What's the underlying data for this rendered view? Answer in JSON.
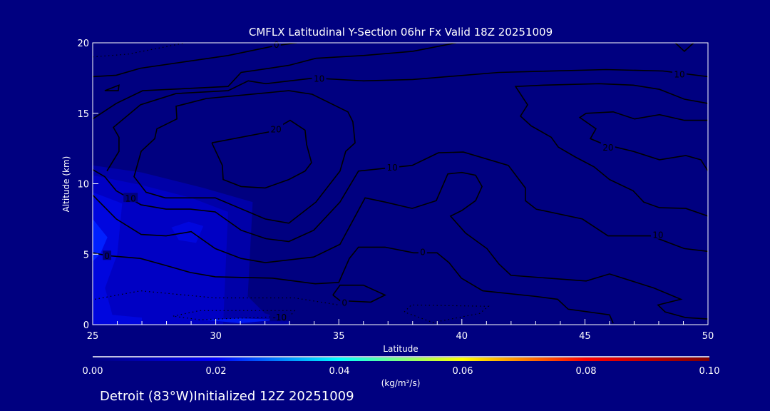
{
  "chart_data": {
    "type": "contour",
    "title": "CMFLX Latitudinal Y-Section 06hr  Fx Valid 18Z 20251009",
    "xlabel": "Latitude",
    "ylabel": "Altitude (km)",
    "xlim": [
      25,
      50
    ],
    "ylim": [
      0,
      20
    ],
    "xticks": [
      25,
      30,
      35,
      40,
      45,
      50
    ],
    "xtick_labels": [
      "25",
      "30",
      "35",
      "40",
      "45",
      "50"
    ],
    "xminor_step": 1,
    "yticks": [
      0,
      5,
      10,
      15,
      20
    ],
    "ytick_labels": [
      "0",
      "5",
      "10",
      "15",
      "20"
    ],
    "background_color": "#000080",
    "shading": [
      {
        "value": 0.006,
        "color": "#0000a8",
        "points": [
          [
            25,
            11.3
          ],
          [
            27,
            10.8
          ],
          [
            29.5,
            9.7
          ],
          [
            31.5,
            8.7
          ],
          [
            31.3,
            2
          ],
          [
            32,
            0.8
          ],
          [
            33,
            0.3
          ],
          [
            33,
            0
          ],
          [
            25,
            0
          ]
        ]
      },
      {
        "value": 0.01,
        "color": "#0000c4",
        "points": [
          [
            25,
            10.6
          ],
          [
            27,
            9.9
          ],
          [
            29,
            9.0
          ],
          [
            30.5,
            8.0
          ],
          [
            30.3,
            0
          ],
          [
            25,
            0
          ]
        ]
      },
      {
        "value": 0.014,
        "color": "#0006de",
        "points": [
          [
            25,
            9.4
          ],
          [
            26.2,
            8.6
          ],
          [
            26.0,
            5.0
          ],
          [
            25.5,
            2.6
          ],
          [
            25.8,
            0.7
          ],
          [
            27,
            0.5
          ],
          [
            27,
            0
          ],
          [
            25,
            0
          ]
        ]
      },
      {
        "value": 0.014,
        "color": "#0006de",
        "points": [
          [
            28.2,
            6.9
          ],
          [
            28.9,
            7.3
          ],
          [
            29.5,
            7.0
          ],
          [
            29.2,
            5.8
          ],
          [
            28.5,
            6.0
          ]
        ]
      },
      {
        "value": 0.018,
        "color": "#0020ff",
        "points": [
          [
            25,
            7.5
          ],
          [
            25.6,
            6.2
          ],
          [
            25.3,
            5.0
          ],
          [
            25,
            4.5
          ]
        ]
      },
      {
        "value": 0.016,
        "color": "#0018f0",
        "points": [
          [
            29.5,
            0.35
          ],
          [
            31,
            0.45
          ],
          [
            32.5,
            0.35
          ],
          [
            31,
            0.1
          ]
        ]
      }
    ],
    "contours": [
      {
        "level": 0,
        "style": "solid",
        "points": [
          [
            25,
            17.6
          ],
          [
            25.96,
            17.7
          ],
          [
            26.94,
            18.2
          ],
          [
            30.5,
            19.1
          ],
          [
            32.45,
            19.8
          ],
          [
            33.3,
            20
          ]
        ]
      },
      {
        "level": 5,
        "style": "solid",
        "points": [
          [
            25,
            14.6
          ],
          [
            25.96,
            15.7
          ],
          [
            27.03,
            16.6
          ],
          [
            30.5,
            16.9
          ],
          [
            31.03,
            17.9
          ],
          [
            32.97,
            18.4
          ],
          [
            34.07,
            18.9
          ],
          [
            36.0,
            19.1
          ],
          [
            38.0,
            19.4
          ],
          [
            39.77,
            20
          ]
        ]
      },
      {
        "level": 10,
        "style": "solid",
        "points": [
          [
            25.58,
            10.9
          ],
          [
            26.07,
            12.3
          ],
          [
            26.07,
            13.3
          ],
          [
            25.84,
            14.0
          ],
          [
            26.94,
            15.6
          ],
          [
            28.39,
            16.4
          ],
          [
            30.5,
            16.6
          ],
          [
            31.32,
            17.3
          ],
          [
            32.04,
            17.1
          ],
          [
            33.98,
            17.5
          ],
          [
            36.0,
            17.3
          ],
          [
            38.0,
            17.4
          ],
          [
            41.5,
            17.9
          ],
          [
            45.86,
            18.1
          ],
          [
            48.17,
            18.0
          ],
          [
            50,
            17.6
          ]
        ]
      },
      {
        "level": 5,
        "style": "solid",
        "points": [
          [
            25.49,
            16.6
          ],
          [
            26.07,
            17.0
          ],
          [
            26.04,
            16.6
          ],
          [
            25.49,
            16.6
          ]
        ]
      },
      {
        "level": 15,
        "style": "solid",
        "points": [
          [
            29.63,
            16.05
          ],
          [
            28.39,
            15.5
          ],
          [
            28.42,
            14.6
          ],
          [
            27.61,
            13.9
          ],
          [
            27.52,
            13.2
          ],
          [
            26.97,
            12.3
          ],
          [
            26.68,
            10.5
          ],
          [
            27.17,
            9.4
          ],
          [
            27.95,
            9.0
          ],
          [
            29.98,
            9.0
          ],
          [
            32.01,
            7.5
          ],
          [
            32.97,
            7.2
          ],
          [
            34.07,
            8.7
          ],
          [
            35.05,
            10.9
          ],
          [
            35.28,
            12.3
          ],
          [
            35.66,
            12.9
          ],
          [
            35.57,
            14.4
          ],
          [
            35.37,
            15.1
          ],
          [
            33.92,
            16.35
          ],
          [
            32.97,
            16.6
          ],
          [
            29.63,
            16.05
          ]
        ]
      },
      {
        "level": 20,
        "style": "solid",
        "points": [
          [
            29.84,
            12.9
          ],
          [
            32.24,
            13.7
          ],
          [
            33.02,
            14.5
          ],
          [
            33.63,
            13.8
          ],
          [
            33.69,
            12.8
          ],
          [
            33.89,
            11.5
          ],
          [
            33.63,
            10.9
          ],
          [
            32.97,
            10.3
          ],
          [
            32.01,
            9.7
          ],
          [
            31.03,
            9.8
          ],
          [
            30.3,
            10.3
          ],
          [
            30.27,
            11.3
          ],
          [
            29.84,
            12.9
          ]
        ]
      },
      {
        "level": 10,
        "style": "solid",
        "points": [
          [
            25,
            11.0
          ],
          [
            25.49,
            10.5
          ],
          [
            25.96,
            9.5
          ],
          [
            26.36,
            9.1
          ],
          [
            26.97,
            8.5
          ],
          [
            27.98,
            8.2
          ],
          [
            28.97,
            8.2
          ],
          [
            29.98,
            8.0
          ],
          [
            31.03,
            6.7
          ],
          [
            32.04,
            6.1
          ],
          [
            32.97,
            5.9
          ],
          [
            33.98,
            6.7
          ],
          [
            35.05,
            8.7
          ],
          [
            35.8,
            10.9
          ],
          [
            36.88,
            11.1
          ],
          [
            37.98,
            11.3
          ],
          [
            39.05,
            12.2
          ],
          [
            40.06,
            12.25
          ],
          [
            41.89,
            11.3
          ],
          [
            42.58,
            9.7
          ],
          [
            42.58,
            8.8
          ],
          [
            43.02,
            8.2
          ],
          [
            44.9,
            7.5
          ],
          [
            45.94,
            6.3
          ],
          [
            47.68,
            6.3
          ],
          [
            49.04,
            5.4
          ],
          [
            50,
            5.2
          ]
        ]
      },
      {
        "level": 5,
        "style": "solid",
        "points": [
          [
            25,
            9.2
          ],
          [
            25.96,
            7.5
          ],
          [
            26.97,
            6.4
          ],
          [
            27.98,
            6.3
          ],
          [
            29.0,
            6.6
          ],
          [
            29.98,
            5.4
          ],
          [
            31.03,
            4.7
          ],
          [
            32.01,
            4.4
          ],
          [
            33.98,
            4.8
          ],
          [
            35.05,
            5.7
          ],
          [
            36.07,
            9.0
          ],
          [
            36.88,
            8.7
          ],
          [
            37.98,
            8.25
          ],
          [
            38.96,
            8.8
          ],
          [
            39.43,
            10.7
          ],
          [
            40.0,
            10.8
          ],
          [
            40.56,
            10.6
          ],
          [
            40.82,
            9.8
          ],
          [
            40.56,
            8.8
          ],
          [
            40.0,
            8.1
          ],
          [
            39.54,
            7.7
          ],
          [
            40.15,
            6.5
          ],
          [
            41.02,
            5.4
          ],
          [
            41.51,
            4.3
          ],
          [
            42.0,
            3.5
          ],
          [
            45.05,
            3.1
          ],
          [
            46.0,
            3.6
          ],
          [
            47.8,
            2.6
          ],
          [
            48.9,
            1.8
          ],
          [
            47.97,
            1.4
          ],
          [
            48.26,
            0.9
          ],
          [
            49.1,
            0.5
          ],
          [
            50,
            0.4
          ]
        ]
      },
      {
        "level": 0,
        "style": "solid",
        "points": [
          [
            25,
            5.1
          ],
          [
            25.58,
            4.9
          ],
          [
            26.94,
            4.7
          ],
          [
            27.98,
            4.2
          ],
          [
            28.97,
            3.7
          ],
          [
            29.98,
            3.4
          ],
          [
            32.3,
            3.3
          ],
          [
            34.04,
            2.9
          ],
          [
            35.0,
            3.0
          ],
          [
            35.43,
            4.7
          ],
          [
            35.8,
            5.5
          ],
          [
            36.88,
            5.5
          ],
          [
            38.04,
            5.1
          ],
          [
            38.99,
            5.1
          ],
          [
            39.48,
            4.4
          ],
          [
            39.98,
            3.3
          ],
          [
            40.85,
            2.4
          ],
          [
            43.02,
            2.0
          ],
          [
            43.89,
            1.8
          ],
          [
            44.32,
            1.1
          ],
          [
            46.0,
            0.7
          ],
          [
            46.15,
            0.1
          ]
        ]
      },
      {
        "level": 0,
        "style": "solid",
        "points": [
          [
            34.76,
            2.1
          ],
          [
            35.05,
            2.8
          ],
          [
            36.0,
            2.8
          ],
          [
            36.88,
            2.1
          ],
          [
            36.3,
            1.6
          ],
          [
            35.05,
            1.7
          ],
          [
            34.76,
            2.1
          ]
        ]
      },
      {
        "level": 0,
        "style": "solid",
        "points": [
          [
            48.67,
            20
          ],
          [
            49.04,
            19.4
          ],
          [
            49.42,
            20
          ]
        ]
      },
      {
        "level": 10,
        "style": "solid",
        "points": [
          [
            50,
            15.7
          ],
          [
            49.04,
            16.0
          ],
          [
            48.03,
            16.7
          ],
          [
            46.96,
            17.0
          ],
          [
            45.57,
            17.1
          ],
          [
            43.34,
            17.0
          ],
          [
            42.18,
            16.9
          ],
          [
            42.67,
            15.6
          ],
          [
            42.38,
            14.8
          ],
          [
            42.82,
            14.1
          ],
          [
            43.63,
            13.3
          ],
          [
            43.92,
            12.6
          ],
          [
            44.61,
            11.9
          ],
          [
            45.37,
            11.2
          ],
          [
            46.0,
            10.3
          ],
          [
            46.96,
            9.5
          ],
          [
            47.39,
            8.7
          ],
          [
            48.03,
            8.3
          ],
          [
            49.1,
            8.25
          ],
          [
            50,
            7.7
          ]
        ]
      },
      {
        "level": 20,
        "style": "solid",
        "points": [
          [
            50,
            14.5
          ],
          [
            49.04,
            14.5
          ],
          [
            48.03,
            14.9
          ],
          [
            47.02,
            14.6
          ],
          [
            46.15,
            15.1
          ],
          [
            45.05,
            15.0
          ],
          [
            44.79,
            14.7
          ],
          [
            45.45,
            13.9
          ],
          [
            45.22,
            13.2
          ],
          [
            45.77,
            12.8
          ],
          [
            46.96,
            12.3
          ],
          [
            48.03,
            11.7
          ],
          [
            49.1,
            12.0
          ],
          [
            49.71,
            11.7
          ],
          [
            50,
            10.9
          ]
        ]
      },
      {
        "level": -5,
        "style": "dotted",
        "points": [
          [
            25,
            19.0
          ],
          [
            26.45,
            19.2
          ],
          [
            28.77,
            20
          ]
        ]
      },
      {
        "level": -5,
        "style": "dotted",
        "points": [
          [
            25.09,
            1.8
          ],
          [
            26.94,
            2.4
          ],
          [
            29.98,
            1.9
          ],
          [
            33.2,
            1.9
          ],
          [
            35.34,
            1.3
          ]
        ]
      },
      {
        "level": -10,
        "style": "dotted",
        "points": [
          [
            28.27,
            0.6
          ],
          [
            29.34,
            1.0
          ],
          [
            33.2,
            1.0
          ],
          [
            33.02,
            0.6
          ],
          [
            29.34,
            0.35
          ],
          [
            28.27,
            0.6
          ]
        ]
      },
      {
        "level": -5,
        "style": "dotted",
        "points": [
          [
            37.66,
            0.9
          ],
          [
            37.95,
            1.4
          ],
          [
            41.08,
            1.3
          ],
          [
            40.73,
            0.8
          ],
          [
            38.82,
            0.15
          ],
          [
            37.66,
            0.9
          ]
        ]
      }
    ],
    "contour_labels": [
      {
        "text": "0",
        "lat": 32.47,
        "alt": 19.9
      },
      {
        "text": "10",
        "lat": 34.2,
        "alt": 17.5
      },
      {
        "text": "20",
        "lat": 32.45,
        "alt": 13.9
      },
      {
        "text": "10",
        "lat": 26.54,
        "alt": 9.0
      },
      {
        "text": "0",
        "lat": 25.58,
        "alt": 4.9
      },
      {
        "text": "0",
        "lat": 35.23,
        "alt": 1.6
      },
      {
        "text": "-10",
        "lat": 32.6,
        "alt": 0.55
      },
      {
        "text": "10",
        "lat": 48.84,
        "alt": 17.8
      },
      {
        "text": "20",
        "lat": 45.94,
        "alt": 12.6
      },
      {
        "text": "10",
        "lat": 37.17,
        "alt": 11.2
      },
      {
        "text": "10",
        "lat": 47.97,
        "alt": 6.4
      },
      {
        "text": "0",
        "lat": 38.41,
        "alt": 5.2
      }
    ],
    "colorbar": {
      "range": [
        0.0,
        0.1
      ],
      "tick_labels": [
        "0.00",
        "0.02",
        "0.04",
        "0.06",
        "0.08",
        "0.10"
      ],
      "units": "(kg/m²/s)",
      "stops": [
        "#00007f",
        "#0000ff",
        "#00ffff",
        "#ffff00",
        "#ff0000",
        "#7f0000"
      ]
    }
  },
  "footer": {
    "info": "Detroit (83°W)Initialized 12Z 20251009"
  }
}
